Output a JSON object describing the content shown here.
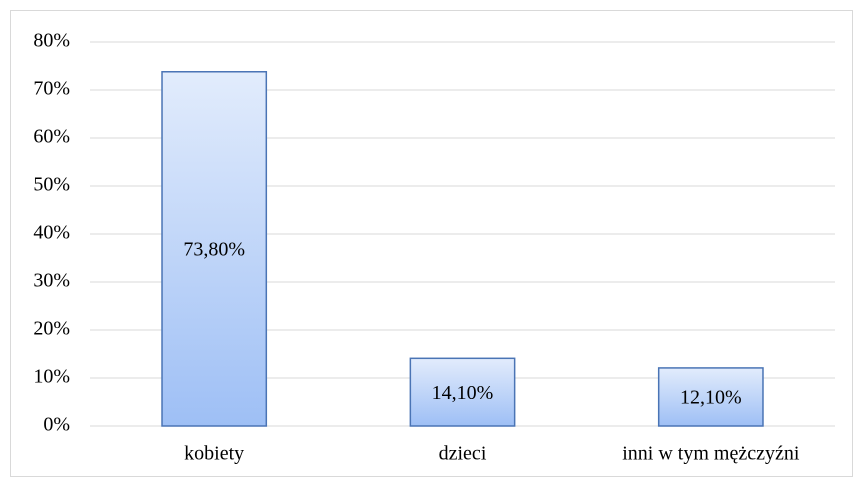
{
  "chart_data": {
    "type": "bar",
    "categories": [
      "kobiety",
      "dzieci",
      "inni w tym mężczyźni"
    ],
    "values": [
      73.8,
      14.1,
      12.1
    ],
    "value_labels": [
      "73,80%",
      "14,10%",
      "12,10%"
    ],
    "color": "#9ebff5",
    "ylim": [
      0,
      80
    ],
    "yticks": [
      {
        "value": 0,
        "label": "0%"
      },
      {
        "value": 10,
        "label": "10%"
      },
      {
        "value": 20,
        "label": "20%"
      },
      {
        "value": 30,
        "label": "30%"
      },
      {
        "value": 40,
        "label": "40%"
      },
      {
        "value": 50,
        "label": "50%"
      },
      {
        "value": 60,
        "label": "60%"
      },
      {
        "value": 70,
        "label": "70%"
      },
      {
        "value": 80,
        "label": "80%"
      }
    ],
    "grid": true
  }
}
